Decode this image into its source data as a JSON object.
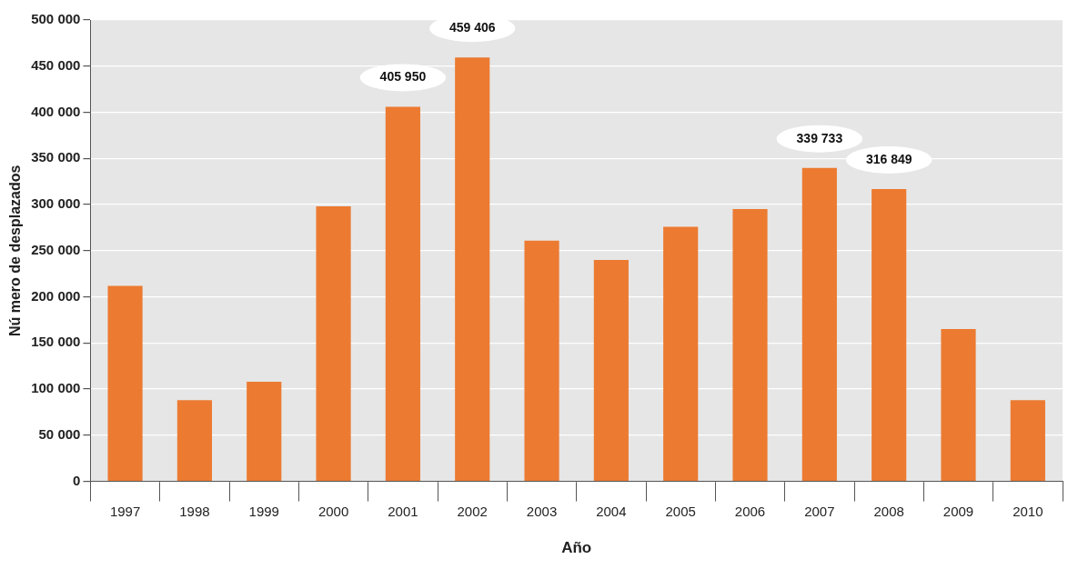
{
  "chart_data": {
    "type": "bar",
    "xlabel": "Año",
    "ylabel": "Nú mero de desplazados",
    "categories": [
      "1997",
      "1998",
      "1999",
      "2000",
      "2001",
      "2002",
      "2003",
      "2004",
      "2005",
      "2006",
      "2007",
      "2008",
      "2009",
      "2010"
    ],
    "values": [
      212000,
      88000,
      108000,
      298000,
      405950,
      459406,
      261000,
      240000,
      276000,
      295000,
      339733,
      316849,
      165000,
      88000
    ],
    "value_labels": [
      null,
      null,
      null,
      null,
      "405 950",
      "459 406",
      null,
      null,
      null,
      null,
      "339 733",
      "316 849",
      null,
      null
    ],
    "color": "#ec7a30",
    "ylim": [
      0,
      500000
    ],
    "yticks": [
      {
        "value": 0,
        "label": "0"
      },
      {
        "value": 50000,
        "label": "50 000"
      },
      {
        "value": 100000,
        "label": "100 000"
      },
      {
        "value": 150000,
        "label": "150 000"
      },
      {
        "value": 200000,
        "label": "200 000"
      },
      {
        "value": 250000,
        "label": "250 000"
      },
      {
        "value": 300000,
        "label": "300 000"
      },
      {
        "value": 350000,
        "label": "350 000"
      },
      {
        "value": 400000,
        "label": "400 000"
      },
      {
        "value": 450000,
        "label": "450 000"
      },
      {
        "value": 500000,
        "label": "500 000"
      }
    ],
    "grid": "y",
    "legend": false
  }
}
